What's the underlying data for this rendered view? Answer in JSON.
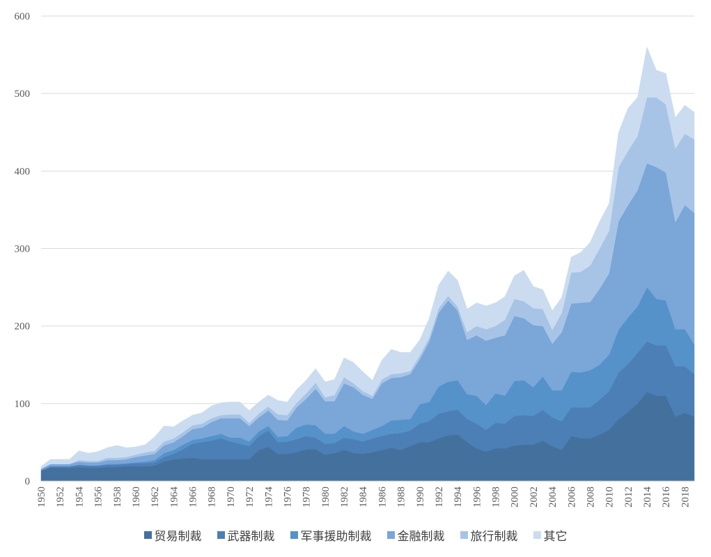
{
  "chart_data": {
    "type": "area",
    "stacked": true,
    "title": "",
    "xlabel": "",
    "ylabel": "",
    "ylim": [
      0,
      600
    ],
    "yticks": [
      0,
      100,
      200,
      300,
      400,
      500,
      600
    ],
    "grid": true,
    "legend_position": "bottom",
    "x": [
      1950,
      1951,
      1952,
      1953,
      1954,
      1955,
      1956,
      1957,
      1958,
      1959,
      1960,
      1961,
      1962,
      1963,
      1964,
      1965,
      1966,
      1967,
      1968,
      1969,
      1970,
      1971,
      1972,
      1973,
      1974,
      1975,
      1976,
      1977,
      1978,
      1979,
      1980,
      1981,
      1982,
      1983,
      1984,
      1985,
      1986,
      1987,
      1988,
      1989,
      1990,
      1991,
      1992,
      1993,
      1994,
      1995,
      1996,
      1997,
      1998,
      1999,
      2000,
      2001,
      2002,
      2003,
      2004,
      2005,
      2006,
      2007,
      2008,
      2009,
      2010,
      2011,
      2012,
      2013,
      2014,
      2015,
      2016,
      2017,
      2018,
      2019
    ],
    "xtick_labels": [
      "1950",
      "1952",
      "1954",
      "1956",
      "1958",
      "1960",
      "1962",
      "1964",
      "1966",
      "1968",
      "1970",
      "1972",
      "1974",
      "1976",
      "1978",
      "1980",
      "1982",
      "1984",
      "1986",
      "1988",
      "1990",
      "1992",
      "1994",
      "1996",
      "1998",
      "2000",
      "2002",
      "2004",
      "2006",
      "2008",
      "2010",
      "2012",
      "2014",
      "2016",
      "2018"
    ],
    "series": [
      {
        "name": "贸易制裁",
        "color": "#44709e",
        "values": [
          13,
          17,
          17,
          17,
          18,
          17,
          17,
          18,
          18,
          19,
          19,
          19,
          20,
          25,
          28,
          29,
          30,
          28,
          28,
          28,
          28,
          28,
          28,
          40,
          44,
          35,
          35,
          37,
          41,
          41,
          34,
          36,
          40,
          36,
          35,
          37,
          40,
          43,
          40,
          45,
          50,
          50,
          55,
          59,
          60,
          50,
          42,
          38,
          42,
          42,
          46,
          47,
          47,
          52,
          45,
          40,
          58,
          55,
          55,
          60,
          66,
          80,
          89,
          100,
          115,
          110,
          110,
          83,
          88,
          83
        ]
      },
      {
        "name": "武器制裁",
        "color": "#4b7fb5",
        "values": [
          1,
          2,
          2,
          2,
          3,
          3,
          3,
          3,
          3,
          3,
          4,
          4,
          4,
          6,
          7,
          12,
          18,
          22,
          24,
          27,
          23,
          20,
          17,
          18,
          21,
          15,
          16,
          17,
          17,
          15,
          14,
          13,
          16,
          18,
          16,
          18,
          18,
          18,
          22,
          20,
          24,
          27,
          32,
          31,
          32,
          30,
          32,
          28,
          33,
          32,
          38,
          38,
          37,
          40,
          37,
          37,
          37,
          40,
          40,
          45,
          50,
          60,
          62,
          65,
          65,
          65,
          65,
          65,
          60,
          55
        ]
      },
      {
        "name": "军事援助制裁",
        "color": "#5592c9",
        "values": [
          0,
          0,
          0,
          0,
          0,
          0,
          0,
          1,
          1,
          1,
          1,
          2,
          3,
          5,
          5,
          6,
          5,
          5,
          6,
          6,
          5,
          8,
          6,
          6,
          6,
          7,
          7,
          15,
          15,
          16,
          13,
          12,
          15,
          10,
          10,
          11,
          13,
          17,
          17,
          15,
          25,
          25,
          35,
          38,
          38,
          32,
          36,
          32,
          38,
          36,
          45,
          45,
          37,
          43,
          35,
          40,
          46,
          45,
          48,
          45,
          47,
          55,
          60,
          60,
          70,
          60,
          58,
          48,
          48,
          38
        ]
      },
      {
        "name": "金融制裁",
        "color": "#7aa6d8",
        "values": [
          2,
          3,
          3,
          3,
          4,
          4,
          4,
          5,
          5,
          5,
          7,
          8,
          8,
          10,
          10,
          11,
          14,
          14,
          18,
          20,
          25,
          25,
          20,
          18,
          20,
          22,
          20,
          26,
          33,
          47,
          42,
          42,
          55,
          57,
          50,
          40,
          55,
          55,
          55,
          58,
          58,
          78,
          95,
          105,
          90,
          70,
          78,
          83,
          72,
          78,
          84,
          80,
          80,
          65,
          60,
          75,
          88,
          90,
          88,
          98,
          105,
          140,
          145,
          150,
          160,
          170,
          165,
          138,
          160,
          170
        ]
      },
      {
        "name": "旅行制裁",
        "color": "#a7c4e6",
        "values": [
          0,
          0,
          0,
          0,
          2,
          2,
          2,
          3,
          3,
          3,
          3,
          4,
          4,
          5,
          5,
          5,
          5,
          5,
          5,
          4,
          5,
          5,
          4,
          5,
          5,
          7,
          7,
          6,
          7,
          8,
          5,
          8,
          8,
          5,
          5,
          4,
          5,
          5,
          5,
          4,
          5,
          5,
          6,
          6,
          5,
          10,
          12,
          15,
          15,
          20,
          22,
          22,
          22,
          22,
          18,
          25,
          40,
          40,
          47,
          52,
          55,
          70,
          70,
          70,
          85,
          90,
          88,
          95,
          92,
          95
        ]
      },
      {
        "name": "其它",
        "color": "#cbdcf0",
        "values": [
          3,
          6,
          6,
          6,
          12,
          10,
          12,
          13,
          16,
          12,
          10,
          10,
          18,
          20,
          15,
          15,
          13,
          14,
          16,
          16,
          16,
          16,
          16,
          15,
          15,
          18,
          17,
          17,
          17,
          18,
          20,
          20,
          25,
          27,
          25,
          20,
          25,
          32,
          27,
          24,
          20,
          25,
          30,
          32,
          34,
          30,
          30,
          30,
          30,
          30,
          30,
          40,
          28,
          25,
          25,
          20,
          20,
          25,
          30,
          35,
          35,
          45,
          55,
          50,
          65,
          35,
          40,
          40,
          37,
          35
        ]
      }
    ]
  }
}
